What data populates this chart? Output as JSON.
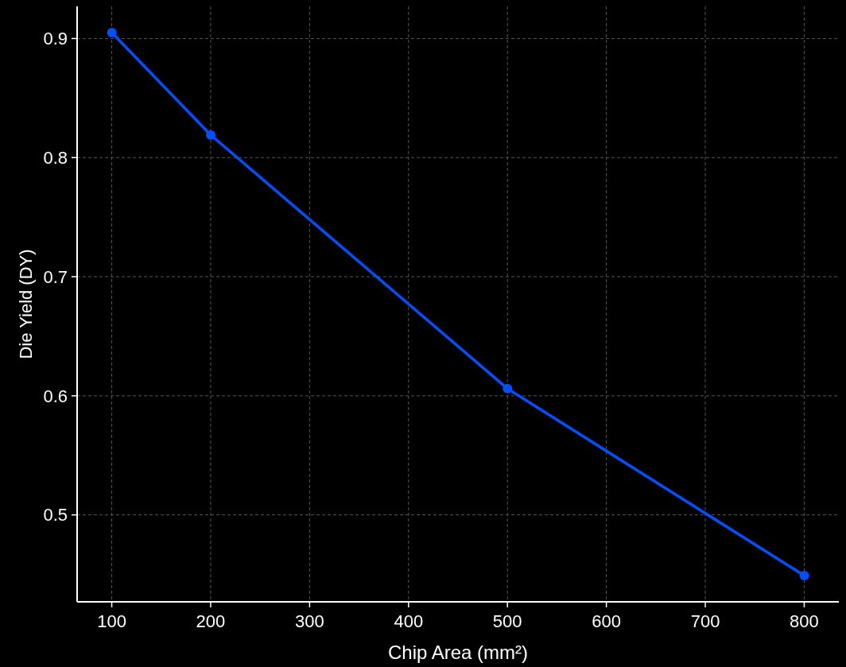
{
  "chart_data": {
    "type": "line",
    "xlabel": "Chip Area (mm²)",
    "ylabel": "Die Yield (DY)",
    "x": [
      100,
      200,
      500,
      800
    ],
    "series": [
      {
        "color": "#0050ff",
        "values": [
          0.905,
          0.819,
          0.606,
          0.449
        ]
      }
    ],
    "xlim": [
      65,
      835
    ],
    "xticks": [
      100,
      200,
      300,
      400,
      500,
      600,
      700,
      800
    ],
    "ylim": [
      0.427,
      0.927
    ],
    "yticks": [
      0.5,
      0.6,
      0.7,
      0.8,
      0.9
    ],
    "grid": true,
    "marker": "circle",
    "line_style": "solid"
  }
}
